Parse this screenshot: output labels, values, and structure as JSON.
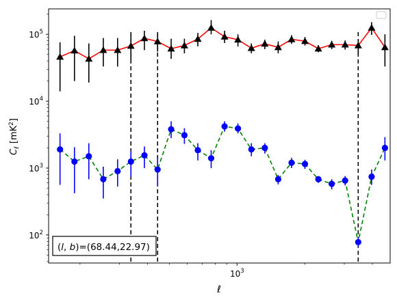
{
  "chart_data": {
    "type": "scatter",
    "title": "",
    "xlabel": "ℓ",
    "ylabel": "C_ℓ  [mK²]",
    "xscale": "log",
    "yscale": "log",
    "xlim": [
      145,
      4800
    ],
    "ylim": [
      38,
      240000
    ],
    "grid": false,
    "legend": {
      "placement": "top-right",
      "entries": []
    },
    "x_ticks": [
      {
        "value": 1000,
        "label": "10",
        "exponent": "3"
      }
    ],
    "y_ticks": [
      {
        "value": 100,
        "label": "10",
        "exponent": "2"
      },
      {
        "value": 1000,
        "label": "10",
        "exponent": "3"
      },
      {
        "value": 10000,
        "label": "10",
        "exponent": "4"
      },
      {
        "value": 100000,
        "label": "10",
        "exponent": "5"
      }
    ],
    "vertical_lines": [
      {
        "x": 337,
        "color": "#000000",
        "style": "dashed"
      },
      {
        "x": 443,
        "color": "#000000",
        "style": "dashed"
      },
      {
        "x": 3460,
        "color": "#000000",
        "style": "dashed"
      }
    ],
    "annotation": {
      "text": "(l, b)=(68.44,22.97)",
      "location": "bottom-left"
    },
    "series": [
      {
        "marker": "triangle",
        "marker_color": "#000000",
        "line_color": "#ff0000",
        "line_style": "solid",
        "errorbar_color": "#000000",
        "x": [
          163,
          189,
          219,
          254,
          294,
          337,
          387,
          443,
          509,
          583,
          669,
          767,
          880,
          1009,
          1158,
          1329,
          1524,
          1748,
          2005,
          2300,
          2638,
          3026,
          3460,
          3970,
          4550
        ],
        "y": [
          46000,
          57000,
          43000,
          58000,
          58000,
          67000,
          87000,
          78000,
          61000,
          68000,
          85000,
          125000,
          92000,
          83000,
          62000,
          72000,
          64000,
          84000,
          79000,
          61000,
          70000,
          70000,
          68000,
          125000,
          64000
        ],
        "y_lower": [
          14000,
          20000,
          19000,
          33000,
          33000,
          42000,
          58000,
          55000,
          43000,
          52000,
          66000,
          100000,
          74000,
          66000,
          52000,
          60000,
          52000,
          72000,
          68000,
          54000,
          60000,
          59000,
          51000,
          98000,
          33000
        ],
        "y_upper": [
          76000,
          95000,
          73000,
          88000,
          88000,
          100000,
          113000,
          100000,
          86000,
          86000,
          105000,
          163000,
          113000,
          100000,
          73000,
          83000,
          78000,
          97000,
          91000,
          69000,
          80000,
          81000,
          82000,
          152000,
          100000
        ]
      },
      {
        "marker": "circle",
        "marker_color": "#0000ff",
        "line_color": "#008000",
        "line_style": "dashed",
        "errorbar_color": "#0000ff",
        "x": [
          163,
          189,
          219,
          254,
          294,
          337,
          387,
          443,
          509,
          583,
          669,
          767,
          880,
          1009,
          1158,
          1329,
          1524,
          1748,
          2005,
          2300,
          2638,
          3026,
          3460,
          3970,
          4550
        ],
        "y": [
          1900,
          1250,
          1500,
          680,
          900,
          1250,
          1550,
          950,
          3800,
          3100,
          1850,
          1400,
          4200,
          3900,
          1900,
          2000,
          680,
          1200,
          1150,
          680,
          580,
          650,
          78,
          740,
          2000
        ],
        "y_lower": [
          560,
          420,
          680,
          350,
          530,
          730,
          1000,
          540,
          2800,
          2300,
          1300,
          1000,
          3500,
          3300,
          1500,
          1650,
          570,
          1000,
          970,
          600,
          480,
          550,
          66,
          560,
          1300
        ],
        "y_upper": [
          3300,
          2050,
          2350,
          1050,
          1350,
          1800,
          2100,
          1400,
          5000,
          3950,
          2350,
          1850,
          5000,
          4650,
          2350,
          2350,
          790,
          1420,
          1330,
          760,
          680,
          760,
          92,
          950,
          2900
        ]
      }
    ]
  }
}
